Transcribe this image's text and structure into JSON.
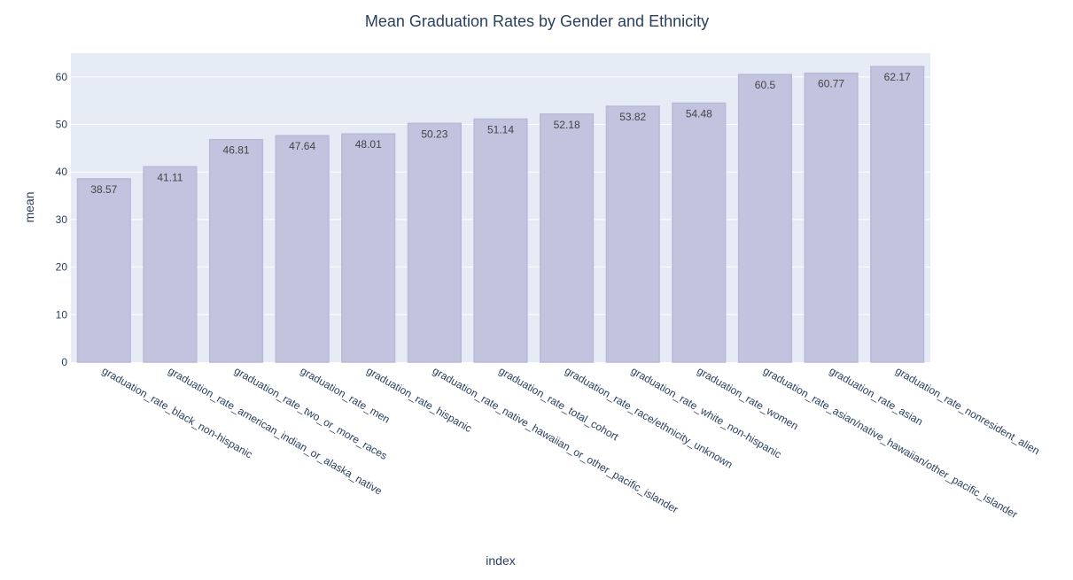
{
  "chart_data": {
    "type": "bar",
    "title": "Mean Graduation Rates by Gender and Ethnicity",
    "xlabel": "index",
    "ylabel": "mean",
    "ylim": [
      0,
      65
    ],
    "yticks": [
      0,
      10,
      20,
      30,
      40,
      50,
      60
    ],
    "grid": true,
    "categories": [
      "graduation_rate_black_non-hispanic",
      "graduation_rate_american_indian_or_alaska_native",
      "graduation_rate_two_or_more_races",
      "graduation_rate_men",
      "graduation_rate_hispanic",
      "graduation_rate_native_hawaiian_or_other_pacific_islander",
      "graduation_rate_total_cohort",
      "graduation_rate_race/ethnicity_unknown",
      "graduation_rate_white_non-hispanic",
      "graduation_rate_women",
      "graduation_rate_asian/native_hawaiian/other_pacific_islander",
      "graduation_rate_asian",
      "graduation_rate_nonresident_alien"
    ],
    "values": [
      38.57,
      41.11,
      46.81,
      47.64,
      48.01,
      50.23,
      51.14,
      52.18,
      53.82,
      54.48,
      60.5,
      60.77,
      62.17
    ],
    "data_labels": [
      "38.57",
      "41.11",
      "46.81",
      "47.64",
      "48.01",
      "50.23",
      "51.14",
      "52.18",
      "53.82",
      "54.48",
      "60.5",
      "60.77",
      "62.17"
    ],
    "colors": {
      "bar_fill": "#c2c3de",
      "bar_stroke": "#b8bad6",
      "plot_bg": "#e5ecf6",
      "grid": "#ffffff",
      "text": "#2a3f5f"
    }
  }
}
